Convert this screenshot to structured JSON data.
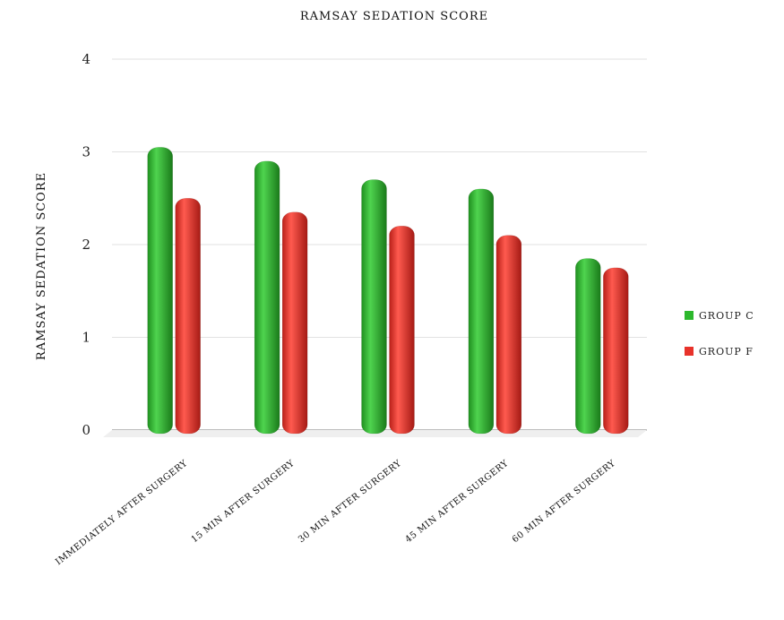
{
  "chart_data": {
    "type": "bar",
    "title": "RAMSAY SEDATION SCORE",
    "xlabel": "",
    "ylabel": "RAMSAY SEDATION SCORE",
    "ylim": [
      0,
      4
    ],
    "yticks": [
      0,
      1,
      2,
      3,
      4
    ],
    "grid": true,
    "legend_position": "right",
    "categories": [
      "IMMEDIATELY AFTER SURGERY",
      "15 MIN AFTER SURGERY",
      "30 MIN AFTER SURGERY",
      "45 MIN AFTER SURGERY",
      "60 MIN AFTER SURGERY"
    ],
    "series": [
      {
        "name": "GROUP C",
        "color": "#2db82d",
        "values": [
          3.05,
          2.9,
          2.7,
          2.6,
          1.85
        ]
      },
      {
        "name": "GROUP F",
        "color": "#e8322a",
        "values": [
          2.5,
          2.35,
          2.2,
          2.1,
          1.75
        ]
      }
    ]
  }
}
